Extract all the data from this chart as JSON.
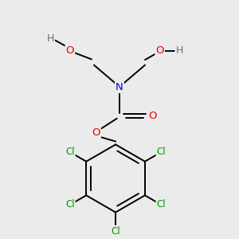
{
  "background_color": "#ebebeb",
  "atom_colors": {
    "N": "#0000ee",
    "O": "#ee0000",
    "Cl": "#009900",
    "H": "#607070",
    "C": "#000000"
  },
  "figsize": [
    3.0,
    3.0
  ],
  "dpi": 100
}
